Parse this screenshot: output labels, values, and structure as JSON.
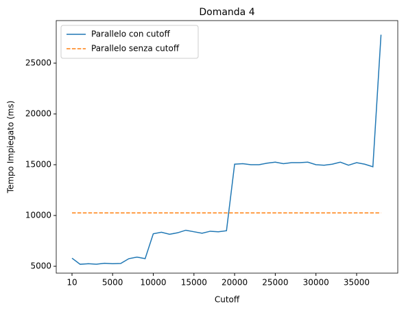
{
  "chart_data": {
    "type": "line",
    "title": "Domanda 4",
    "xlabel": "Cutoff",
    "ylabel": "Tempo Impiegato (ms)",
    "series": [
      {
        "name": "Parallelo con cutoff",
        "color": "#1f77b4",
        "style": "solid",
        "x": [
          10,
          1000,
          2000,
          3000,
          4000,
          5000,
          6000,
          7000,
          8000,
          9000,
          10000,
          11000,
          12000,
          13000,
          14000,
          15000,
          16000,
          17000,
          18000,
          19000,
          20000,
          21000,
          22000,
          23000,
          24000,
          25000,
          26000,
          27000,
          28000,
          29000,
          30000,
          31000,
          32000,
          33000,
          34000,
          35000,
          36000,
          37000,
          38000
        ],
        "values": [
          5800,
          5200,
          5250,
          5200,
          5300,
          5250,
          5280,
          5750,
          5900,
          5750,
          8200,
          8350,
          8150,
          8300,
          8550,
          8400,
          8250,
          8450,
          8400,
          8500,
          15050,
          15100,
          15000,
          15000,
          15150,
          15250,
          15100,
          15200,
          15200,
          15250,
          15000,
          14950,
          15050,
          15250,
          14950,
          15200,
          15050,
          14800,
          27800
        ]
      },
      {
        "name": "Parallelo senza cutoff",
        "color": "#ff7f0e",
        "style": "dashed",
        "x": [
          10,
          38000
        ],
        "values": [
          10250,
          10250
        ]
      }
    ],
    "xlim": [
      -1930,
      40060
    ],
    "xticks": [
      10,
      5000,
      10000,
      15000,
      20000,
      25000,
      30000,
      35000
    ],
    "ylim": [
      4325,
      29190
    ],
    "yticks": [
      5000,
      10000,
      15000,
      20000,
      25000
    ],
    "grid": false,
    "legend": "upper-left"
  }
}
